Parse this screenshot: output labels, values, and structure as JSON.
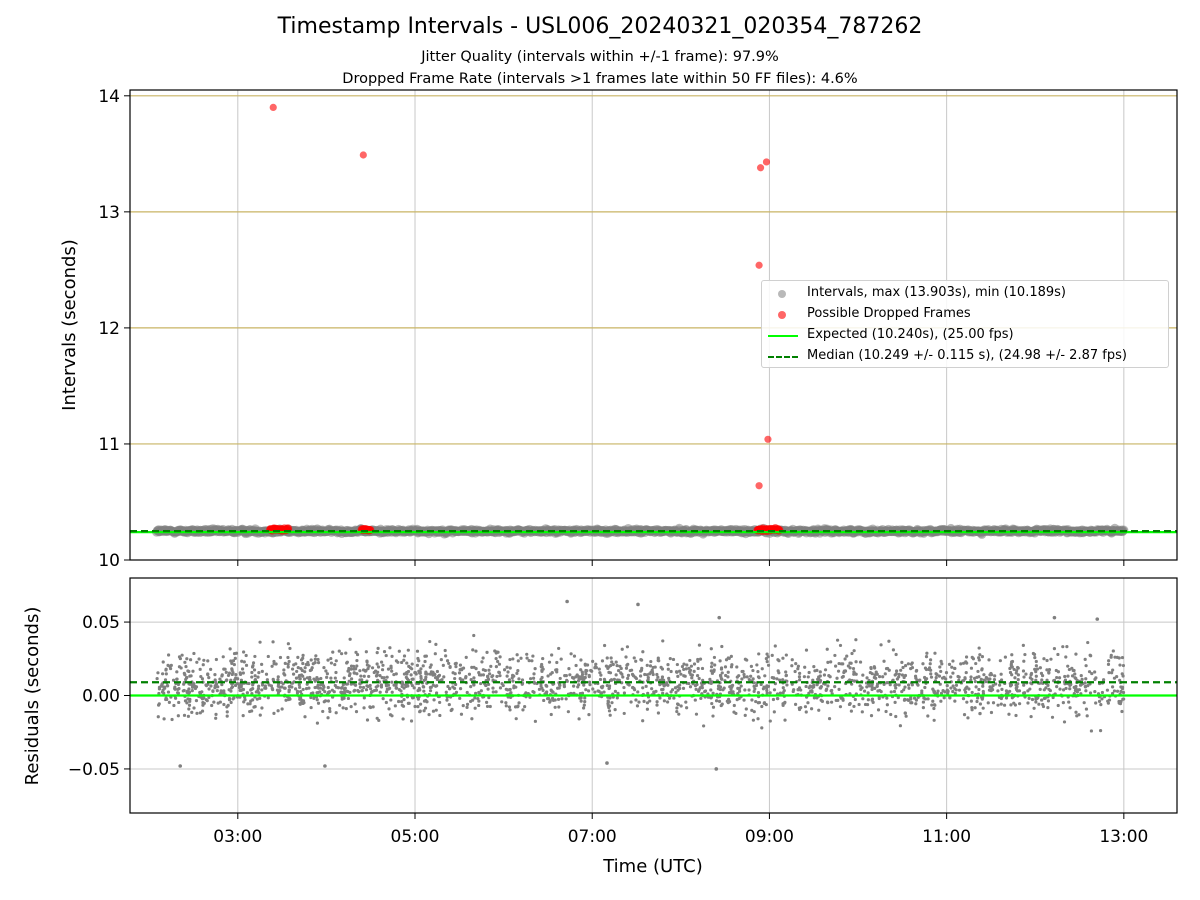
{
  "figure": {
    "title": "Timestamp Intervals - USL006_20240321_020354_787262",
    "subtitle_1": "Jitter Quality (intervals within +/-1 frame): 97.9%",
    "subtitle_2": "Dropped Frame Rate (intervals >1 frames late within 50 FF files): 4.6%"
  },
  "legend": {
    "intervals": "Intervals, max (13.903s), min (10.189s)",
    "dropped": "Possible Dropped Frames",
    "expected": "Expected (10.240s), (25.00 fps)",
    "median": "Median (10.249 +/- 0.115 s), (24.98 +/- 2.87 fps)"
  },
  "colors": {
    "intervals": "#808080",
    "dropped": "#ff0000",
    "expected": "#00ff00",
    "median": "#008000",
    "frame_lines": "#c8b464",
    "grid": "#c8c8c8"
  },
  "chart_data": [
    {
      "type": "scatter",
      "ylabel": "Intervals (seconds)",
      "ylim": [
        10,
        14.05
      ],
      "xlim": [
        "01:47",
        "13:36"
      ],
      "yticks": [
        "10",
        "11",
        "12",
        "13",
        "14"
      ],
      "grid": "vertical",
      "legend_position": "center-right",
      "frame_lines": [
        11,
        12,
        13,
        14
      ],
      "expected": 10.24,
      "median": 10.249,
      "interval_band": {
        "x_start": "02:05",
        "x_end": "13:00",
        "center": 10.249,
        "min": 10.189,
        "max": 10.31
      },
      "series": [
        {
          "name": "Possible Dropped Frames",
          "points": [
            [
              "03:24",
              13.9
            ],
            [
              "04:25",
              13.49
            ],
            [
              "08:54",
              13.38
            ],
            [
              "08:58",
              13.43
            ],
            [
              "08:53",
              12.54
            ],
            [
              "08:59",
              11.04
            ],
            [
              "08:53",
              10.64
            ],
            [
              "03:22",
              10.27
            ],
            [
              "03:25",
              10.27
            ],
            [
              "03:28",
              10.26
            ],
            [
              "03:31",
              10.26
            ],
            [
              "03:34",
              10.26
            ],
            [
              "04:24",
              10.26
            ],
            [
              "04:27",
              10.26
            ],
            [
              "04:30",
              10.26
            ],
            [
              "08:52",
              10.26
            ],
            [
              "08:55",
              10.26
            ],
            [
              "08:58",
              10.27
            ],
            [
              "09:01",
              10.26
            ],
            [
              "09:04",
              10.26
            ],
            [
              "09:07",
              10.26
            ]
          ]
        }
      ]
    },
    {
      "type": "scatter",
      "xlabel": "Time (UTC)",
      "ylabel": "Residuals (seconds)",
      "ylim": [
        -0.08,
        0.08
      ],
      "xticks": [
        "03:00",
        "05:00",
        "07:00",
        "09:00",
        "11:00",
        "13:00"
      ],
      "yticks": [
        "0.05",
        "0.00",
        "−0.05"
      ],
      "grid": "both",
      "expected_residual": 0.0,
      "median_residual": 0.009,
      "residual_cloud": {
        "x_start": "02:05",
        "x_end": "13:00",
        "center": 0.008,
        "spread": 0.015,
        "min": -0.05,
        "max": 0.064
      },
      "outliers": [
        [
          "06:43",
          0.064
        ],
        [
          "07:31",
          0.062
        ],
        [
          "08:26",
          0.053
        ],
        [
          "12:13",
          0.053
        ],
        [
          "12:42",
          0.052
        ],
        [
          "02:21",
          -0.048
        ],
        [
          "03:59",
          -0.048
        ],
        [
          "07:10",
          -0.046
        ],
        [
          "08:24",
          -0.05
        ]
      ]
    }
  ]
}
